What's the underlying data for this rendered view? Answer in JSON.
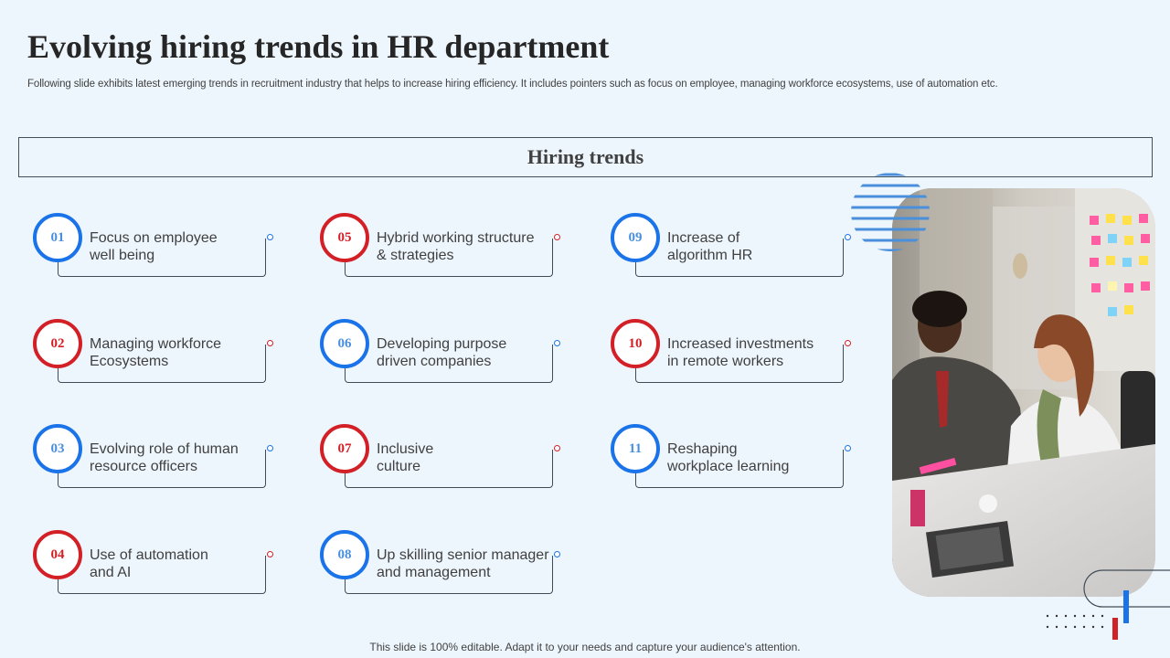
{
  "title": "Evolving hiring trends in HR department",
  "subtitle": "Following slide exhibits latest emerging trends in recruitment industry that helps to increase hiring efficiency. It includes pointers such as focus on employee, managing workforce ecosystems, use of automation etc.",
  "section_title": "Hiring trends",
  "items": [
    {
      "num": "01",
      "label": "Focus on employee\nwell being",
      "color": "blue"
    },
    {
      "num": "02",
      "label": "Managing workforce\nEcosystems",
      "color": "red"
    },
    {
      "num": "03",
      "label": "Evolving role of human\nresource officers",
      "color": "blue"
    },
    {
      "num": "04",
      "label": "Use of automation\nand AI",
      "color": "red"
    },
    {
      "num": "05",
      "label": "Hybrid working structure\n& strategies",
      "color": "red"
    },
    {
      "num": "06",
      "label": "Developing purpose\ndriven companies",
      "color": "blue"
    },
    {
      "num": "07",
      "label": "Inclusive\nculture",
      "color": "red"
    },
    {
      "num": "08",
      "label": "Up skilling senior manager\nand management",
      "color": "blue"
    },
    {
      "num": "09",
      "label": "Increase of\nalgorithm HR",
      "color": "blue"
    },
    {
      "num": "10",
      "label": "Increased investments\nin remote workers",
      "color": "red"
    },
    {
      "num": "11",
      "label": "Reshaping\nworkplace learning",
      "color": "blue"
    }
  ],
  "footer": "This slide is 100% editable. Adapt it to your needs and capture your audience's attention.",
  "colors": {
    "blue": "#1a73e8",
    "red": "#d32027",
    "background": "#eef6fd",
    "text": "#404040"
  },
  "photo_icon": "office-meeting-photo"
}
